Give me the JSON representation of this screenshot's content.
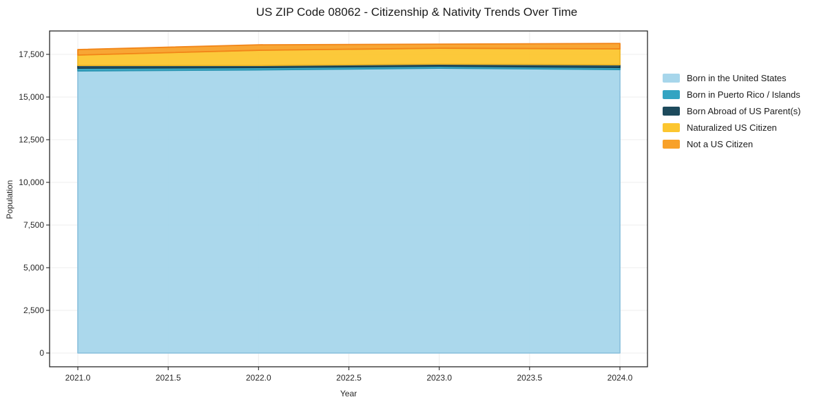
{
  "figure": {
    "title": "US ZIP Code 08062 - Citizenship & Nativity Trends Over Time",
    "background": "#ffffff"
  },
  "chart_data": {
    "type": "area",
    "stacked": true,
    "title": "US ZIP Code 08062 - Citizenship & Nativity Trends Over Time",
    "xlabel": "Year",
    "ylabel": "Population",
    "x": [
      2021,
      2022,
      2023,
      2024
    ],
    "series": [
      {
        "name": "Born in the United States",
        "values": [
          16530,
          16590,
          16690,
          16610
        ],
        "fill": "#A7D6EB",
        "edge": "#8FC3DE"
      },
      {
        "name": "Born in Puerto Rico / Islands",
        "values": [
          160,
          140,
          120,
          120
        ],
        "fill": "#33A4C2",
        "edge": "#2B96B3"
      },
      {
        "name": "Born Abroad of US Parent(s)",
        "values": [
          160,
          120,
          120,
          160
        ],
        "fill": "#1D4A5C",
        "edge": "#173F50"
      },
      {
        "name": "Naturalized US Citizen",
        "values": [
          610,
          890,
          930,
          930
        ],
        "fill": "#FCC62F",
        "edge": "#EFB728"
      },
      {
        "name": "Not a US Citizen",
        "values": [
          320,
          320,
          240,
          320
        ],
        "fill": "#F8A129",
        "edge": "#F28518"
      }
    ],
    "stack_totals": [
      17780,
      18060,
      18100,
      18140
    ],
    "x_ticks": [
      {
        "label": "2021.0",
        "value": 2021.0
      },
      {
        "label": "2021.5",
        "value": 2021.5
      },
      {
        "label": "2022.0",
        "value": 2022.0
      },
      {
        "label": "2022.5",
        "value": 2022.5
      },
      {
        "label": "2023.0",
        "value": 2023.0
      },
      {
        "label": "2023.5",
        "value": 2023.5
      },
      {
        "label": "2024.0",
        "value": 2024.0
      }
    ],
    "y_ticks": [
      {
        "label": "0",
        "value": 0
      },
      {
        "label": "2,500",
        "value": 2500
      },
      {
        "label": "5,000",
        "value": 5000
      },
      {
        "label": "7,500",
        "value": 7500
      },
      {
        "label": "10,000",
        "value": 10000
      },
      {
        "label": "12,500",
        "value": 12500
      },
      {
        "label": "15,000",
        "value": 15000
      },
      {
        "label": "17,500",
        "value": 17500
      }
    ],
    "xlim": [
      2020.84,
      2024.16
    ],
    "ylim": [
      -800,
      18870
    ],
    "grid": true,
    "legend_position": "right-outside"
  },
  "colors": {
    "frame": "#262626",
    "grid": "#ececec",
    "tick_text": "#262626",
    "title_text": "#1a1a1a"
  }
}
